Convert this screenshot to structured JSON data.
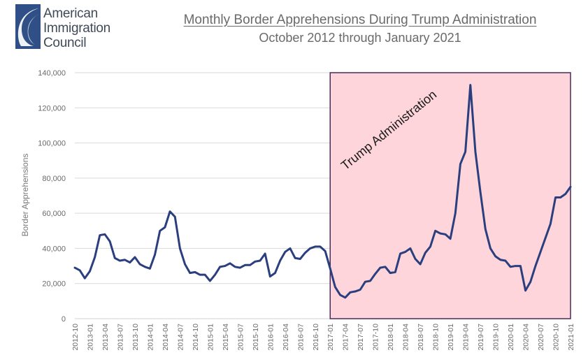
{
  "logo": {
    "line1": "American",
    "line2": "Immigration",
    "line3": "Council"
  },
  "colors": {
    "series": "#2b3f7e",
    "highlight_fill": "#fdd5da",
    "highlight_border": "#4b2a5b",
    "grid": "#d9d9d9",
    "logo_text": "#3f4a59"
  },
  "chart_data": {
    "type": "line",
    "title": "Monthly Border Apprehensions During Trump Administration",
    "subtitle": "October 2012 through January 2021",
    "xlabel": "",
    "ylabel": "Border Apprehensions",
    "ylim": [
      0,
      140000
    ],
    "yticks": [
      0,
      20000,
      40000,
      60000,
      80000,
      100000,
      120000,
      140000
    ],
    "ytick_labels": [
      "0",
      "20,000",
      "40,000",
      "60,000",
      "80,000",
      "100,000",
      "120,000",
      "140,000"
    ],
    "grid": true,
    "x_start": "2012-10",
    "x_end": "2021-01",
    "x_tick_labels": [
      "2012-10",
      "2013-01",
      "2013-04",
      "2013-07",
      "2013-10",
      "2014-01",
      "2014-04",
      "2014-07",
      "2014-10",
      "2015-01",
      "2015-04",
      "2015-07",
      "2015-10",
      "2016-01",
      "2016-04",
      "2016-07",
      "2016-10",
      "2017-01",
      "2017-04",
      "2017-07",
      "2017-10",
      "2018-01",
      "2018-04",
      "2018-07",
      "2018-10",
      "2019-01",
      "2019-04",
      "2019-07",
      "2019-10",
      "2020-01",
      "2020-04",
      "2020-07",
      "2020-10",
      "2021-01"
    ],
    "highlight": {
      "label": "Trump Administration",
      "start": "2017-01",
      "end": "2021-01"
    },
    "series": [
      {
        "name": "Border Apprehensions",
        "values": [
          29000,
          27500,
          23000,
          27000,
          35000,
          47500,
          48000,
          44000,
          34500,
          33000,
          33500,
          32000,
          35000,
          31000,
          29500,
          28500,
          36500,
          50000,
          52000,
          61000,
          58000,
          40000,
          31000,
          26000,
          26500,
          25000,
          25000,
          21500,
          25000,
          29500,
          30000,
          31500,
          29500,
          29000,
          30500,
          30500,
          32500,
          33000,
          37000,
          24000,
          26000,
          33000,
          38000,
          40000,
          34500,
          34000,
          37500,
          40000,
          41000,
          41000,
          38500,
          28500,
          18000,
          13500,
          12000,
          15000,
          15500,
          16500,
          21000,
          21500,
          25500,
          29000,
          29500,
          26000,
          26500,
          37000,
          38000,
          40000,
          34000,
          31000,
          37500,
          41000,
          50000,
          48500,
          48000,
          45500,
          60000,
          88000,
          95000,
          133000,
          95000,
          72000,
          51000,
          40000,
          35500,
          33500,
          33000,
          29500,
          30000,
          30000,
          16000,
          21000,
          30000,
          38000,
          46000,
          54000,
          69000,
          69000,
          71000,
          75000
        ]
      }
    ]
  }
}
